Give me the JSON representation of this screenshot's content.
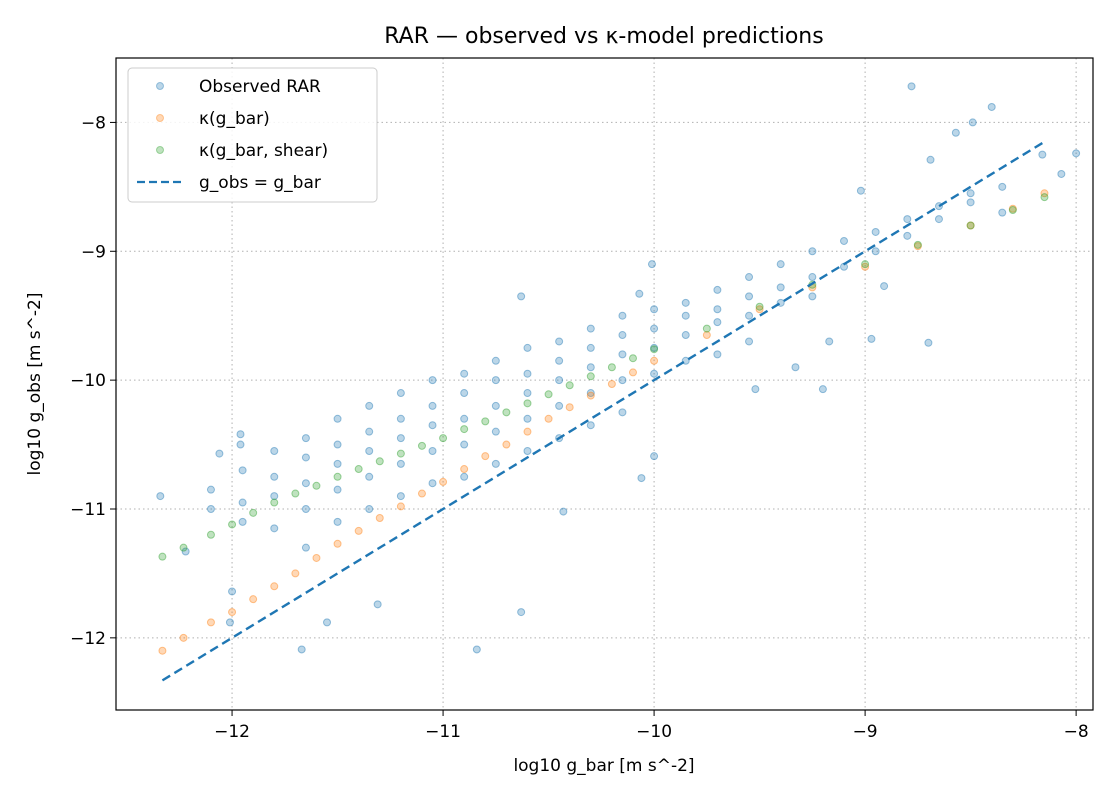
{
  "chart_data": {
    "type": "scatter",
    "title": "RAR — observed vs κ-model predictions",
    "xlabel": "log10 g_bar  [m s^-2]",
    "ylabel": "log10 g_obs  [m s^-2]",
    "xlim": [
      -12.55,
      -7.92
    ],
    "ylim": [
      -12.56,
      -7.5
    ],
    "xticks": [
      -12,
      -11,
      -10,
      -9,
      -8
    ],
    "yticks": [
      -12,
      -11,
      -10,
      -9,
      -8
    ],
    "xtick_labels": [
      "−12",
      "−11",
      "−10",
      "−9",
      "−8"
    ],
    "ytick_labels": [
      "−12",
      "−11",
      "−10",
      "−9",
      "−8"
    ],
    "grid": true,
    "legend_position": "top-left",
    "series": [
      {
        "name": "Observed RAR",
        "kind": "scatter",
        "color": "#1f77b4",
        "points": [
          [
            -12.34,
            -10.9
          ],
          [
            -12.22,
            -11.33
          ],
          [
            -12.06,
            -10.57
          ],
          [
            -11.96,
            -10.42
          ],
          [
            -11.96,
            -10.5
          ],
          [
            -12.01,
            -11.88
          ],
          [
            -12.0,
            -11.64
          ],
          [
            -11.67,
            -12.09
          ],
          [
            -10.84,
            -12.09
          ],
          [
            -11.31,
            -11.74
          ],
          [
            -11.55,
            -11.88
          ],
          [
            -10.63,
            -11.8
          ],
          [
            -10.43,
            -11.02
          ],
          [
            -10.63,
            -9.35
          ],
          [
            -10.07,
            -9.33
          ],
          [
            -10.01,
            -9.1
          ],
          [
            -9.02,
            -8.53
          ],
          [
            -8.78,
            -7.72
          ],
          [
            -8.4,
            -7.88
          ],
          [
            -8.49,
            -8.0
          ],
          [
            -8.57,
            -8.08
          ],
          [
            -8.69,
            -8.29
          ],
          [
            -8.0,
            -8.24
          ],
          [
            -8.07,
            -8.4
          ],
          [
            -8.16,
            -8.25
          ],
          [
            -8.91,
            -9.27
          ],
          [
            -8.7,
            -9.71
          ],
          [
            -8.97,
            -9.68
          ],
          [
            -9.33,
            -9.9
          ],
          [
            -9.17,
            -9.7
          ],
          [
            -9.2,
            -10.07
          ],
          [
            -9.52,
            -10.07
          ],
          [
            -10.0,
            -10.59
          ],
          [
            -10.06,
            -10.76
          ],
          [
            -12.1,
            -10.85
          ],
          [
            -12.1,
            -11.0
          ],
          [
            -11.95,
            -10.7
          ],
          [
            -11.95,
            -10.95
          ],
          [
            -11.95,
            -11.1
          ],
          [
            -11.8,
            -10.55
          ],
          [
            -11.8,
            -10.75
          ],
          [
            -11.8,
            -10.9
          ],
          [
            -11.8,
            -11.15
          ],
          [
            -11.65,
            -10.45
          ],
          [
            -11.65,
            -10.6
          ],
          [
            -11.65,
            -10.8
          ],
          [
            -11.65,
            -11.0
          ],
          [
            -11.65,
            -11.3
          ],
          [
            -11.5,
            -10.3
          ],
          [
            -11.5,
            -10.5
          ],
          [
            -11.5,
            -10.65
          ],
          [
            -11.5,
            -10.85
          ],
          [
            -11.5,
            -11.1
          ],
          [
            -11.35,
            -10.2
          ],
          [
            -11.35,
            -10.4
          ],
          [
            -11.35,
            -10.55
          ],
          [
            -11.35,
            -10.75
          ],
          [
            -11.35,
            -11.0
          ],
          [
            -11.2,
            -10.1
          ],
          [
            -11.2,
            -10.3
          ],
          [
            -11.2,
            -10.45
          ],
          [
            -11.2,
            -10.65
          ],
          [
            -11.2,
            -10.9
          ],
          [
            -11.05,
            -10.0
          ],
          [
            -11.05,
            -10.2
          ],
          [
            -11.05,
            -10.35
          ],
          [
            -11.05,
            -10.55
          ],
          [
            -11.05,
            -10.8
          ],
          [
            -10.9,
            -9.95
          ],
          [
            -10.9,
            -10.1
          ],
          [
            -10.9,
            -10.3
          ],
          [
            -10.9,
            -10.5
          ],
          [
            -10.9,
            -10.75
          ],
          [
            -10.75,
            -9.85
          ],
          [
            -10.75,
            -10.0
          ],
          [
            -10.75,
            -10.2
          ],
          [
            -10.75,
            -10.4
          ],
          [
            -10.75,
            -10.65
          ],
          [
            -10.6,
            -9.75
          ],
          [
            -10.6,
            -9.95
          ],
          [
            -10.6,
            -10.1
          ],
          [
            -10.6,
            -10.3
          ],
          [
            -10.6,
            -10.55
          ],
          [
            -10.45,
            -9.7
          ],
          [
            -10.45,
            -9.85
          ],
          [
            -10.45,
            -10.0
          ],
          [
            -10.45,
            -10.2
          ],
          [
            -10.45,
            -10.45
          ],
          [
            -10.3,
            -9.6
          ],
          [
            -10.3,
            -9.75
          ],
          [
            -10.3,
            -9.9
          ],
          [
            -10.3,
            -10.1
          ],
          [
            -10.3,
            -10.35
          ],
          [
            -10.15,
            -9.5
          ],
          [
            -10.15,
            -9.65
          ],
          [
            -10.15,
            -9.8
          ],
          [
            -10.15,
            -10.0
          ],
          [
            -10.15,
            -10.25
          ],
          [
            -10.0,
            -9.45
          ],
          [
            -10.0,
            -9.6
          ],
          [
            -10.0,
            -9.75
          ],
          [
            -10.0,
            -9.95
          ],
          [
            -9.85,
            -9.4
          ],
          [
            -9.85,
            -9.5
          ],
          [
            -9.85,
            -9.65
          ],
          [
            -9.85,
            -9.85
          ],
          [
            -9.7,
            -9.3
          ],
          [
            -9.7,
            -9.45
          ],
          [
            -9.7,
            -9.55
          ],
          [
            -9.7,
            -9.8
          ],
          [
            -9.55,
            -9.2
          ],
          [
            -9.55,
            -9.35
          ],
          [
            -9.55,
            -9.5
          ],
          [
            -9.55,
            -9.7
          ],
          [
            -9.4,
            -9.1
          ],
          [
            -9.4,
            -9.28
          ],
          [
            -9.4,
            -9.4
          ],
          [
            -9.25,
            -9.0
          ],
          [
            -9.25,
            -9.2
          ],
          [
            -9.25,
            -9.35
          ],
          [
            -9.1,
            -8.92
          ],
          [
            -9.1,
            -9.12
          ],
          [
            -8.95,
            -8.85
          ],
          [
            -8.95,
            -9.0
          ],
          [
            -8.8,
            -8.75
          ],
          [
            -8.8,
            -8.88
          ],
          [
            -8.65,
            -8.65
          ],
          [
            -8.65,
            -8.75
          ],
          [
            -8.5,
            -8.55
          ],
          [
            -8.5,
            -8.62
          ],
          [
            -8.35,
            -8.5
          ],
          [
            -8.35,
            -8.7
          ]
        ]
      },
      {
        "name": "κ(g_bar)",
        "kind": "scatter",
        "color": "#ff7f0e",
        "points": [
          [
            -12.33,
            -12.1
          ],
          [
            -12.23,
            -12.0
          ],
          [
            -12.1,
            -11.88
          ],
          [
            -12.0,
            -11.8
          ],
          [
            -11.9,
            -11.7
          ],
          [
            -11.8,
            -11.6
          ],
          [
            -11.7,
            -11.5
          ],
          [
            -11.6,
            -11.38
          ],
          [
            -11.5,
            -11.27
          ],
          [
            -11.4,
            -11.17
          ],
          [
            -11.3,
            -11.07
          ],
          [
            -11.2,
            -10.98
          ],
          [
            -11.1,
            -10.88
          ],
          [
            -11.0,
            -10.79
          ],
          [
            -10.9,
            -10.69
          ],
          [
            -10.8,
            -10.59
          ],
          [
            -10.7,
            -10.5
          ],
          [
            -10.6,
            -10.4
          ],
          [
            -10.5,
            -10.3
          ],
          [
            -10.4,
            -10.21
          ],
          [
            -10.3,
            -10.12
          ],
          [
            -10.2,
            -10.03
          ],
          [
            -10.1,
            -9.94
          ],
          [
            -10.0,
            -9.85
          ],
          [
            -9.75,
            -9.65
          ],
          [
            -9.5,
            -9.45
          ],
          [
            -9.25,
            -9.28
          ],
          [
            -9.0,
            -9.12
          ],
          [
            -8.75,
            -8.96
          ],
          [
            -8.5,
            -8.8
          ],
          [
            -8.3,
            -8.67
          ],
          [
            -8.15,
            -8.55
          ]
        ]
      },
      {
        "name": "κ(g_bar, shear)",
        "kind": "scatter",
        "color": "#2ca02c",
        "points": [
          [
            -12.33,
            -11.37
          ],
          [
            -12.23,
            -11.3
          ],
          [
            -12.1,
            -11.2
          ],
          [
            -12.0,
            -11.12
          ],
          [
            -11.9,
            -11.03
          ],
          [
            -11.8,
            -10.95
          ],
          [
            -11.7,
            -10.88
          ],
          [
            -11.6,
            -10.82
          ],
          [
            -11.5,
            -10.75
          ],
          [
            -11.4,
            -10.69
          ],
          [
            -11.3,
            -10.63
          ],
          [
            -11.2,
            -10.57
          ],
          [
            -11.1,
            -10.51
          ],
          [
            -11.0,
            -10.45
          ],
          [
            -10.9,
            -10.38
          ],
          [
            -10.8,
            -10.32
          ],
          [
            -10.7,
            -10.25
          ],
          [
            -10.6,
            -10.18
          ],
          [
            -10.5,
            -10.11
          ],
          [
            -10.4,
            -10.04
          ],
          [
            -10.3,
            -9.97
          ],
          [
            -10.2,
            -9.9
          ],
          [
            -10.1,
            -9.83
          ],
          [
            -10.0,
            -9.76
          ],
          [
            -9.75,
            -9.6
          ],
          [
            -9.5,
            -9.43
          ],
          [
            -9.25,
            -9.26
          ],
          [
            -9.0,
            -9.1
          ],
          [
            -8.75,
            -8.95
          ],
          [
            -8.5,
            -8.8
          ],
          [
            -8.3,
            -8.68
          ],
          [
            -8.15,
            -8.58
          ]
        ]
      },
      {
        "name": "g_obs = g_bar",
        "kind": "line",
        "style": "dashed",
        "color": "#1f77b4",
        "points": [
          [
            -12.33,
            -12.33
          ],
          [
            -8.15,
            -8.15
          ]
        ]
      }
    ]
  }
}
